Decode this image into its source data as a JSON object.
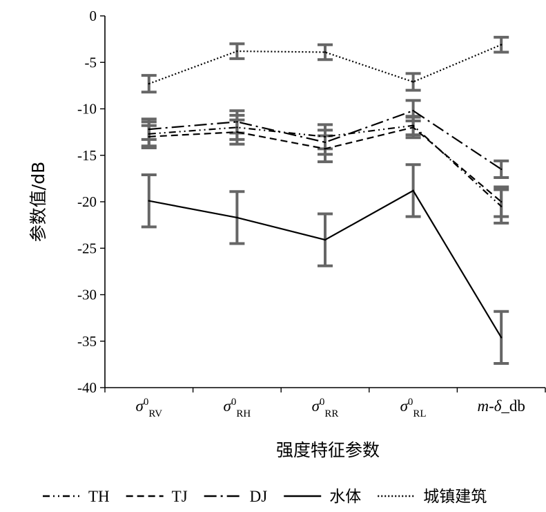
{
  "chart_data": {
    "type": "line",
    "xlabel": "强度特征参数",
    "ylabel": "参数值/dB",
    "ylim": [
      -40,
      0
    ],
    "yticks": [
      0,
      -5,
      -10,
      -15,
      -20,
      -25,
      -30,
      -35,
      -40
    ],
    "categories": [
      {
        "symbol": "σ",
        "sup": "0",
        "sub": "RV"
      },
      {
        "symbol": "σ",
        "sup": "0",
        "sub": "RH"
      },
      {
        "symbol": "σ",
        "sup": "0",
        "sub": "RR"
      },
      {
        "symbol": "σ",
        "sup": "0",
        "sub": "RL"
      },
      {
        "symbol": "m-δ",
        "sup": "",
        "sub": "",
        "suffix": "_db"
      }
    ],
    "grid": false,
    "legend_position": "bottom",
    "series": [
      {
        "name": "TH",
        "dash": "dash-dot-dot",
        "values": [
          -12.7,
          -12.0,
          -13.0,
          -11.8,
          -20.5
        ],
        "errors": [
          1.3,
          1.3,
          1.3,
          1.0,
          1.8
        ]
      },
      {
        "name": "TJ",
        "dash": "dash",
        "values": [
          -13.0,
          -12.5,
          -14.3,
          -12.0,
          -20.0
        ],
        "errors": [
          1.2,
          1.3,
          1.4,
          1.1,
          1.6
        ]
      },
      {
        "name": "DJ",
        "dash": "long-dash-dot",
        "values": [
          -12.2,
          -11.4,
          -13.6,
          -10.2,
          -16.5
        ],
        "errors": [
          1.1,
          1.2,
          1.3,
          1.1,
          0.9
        ]
      },
      {
        "name": "水体",
        "dash": "solid",
        "values": [
          -19.9,
          -21.7,
          -24.1,
          -18.8,
          -34.6
        ],
        "errors": [
          2.8,
          2.8,
          2.8,
          2.8,
          2.8
        ]
      },
      {
        "name": "城镇建筑",
        "dash": "dot",
        "values": [
          -7.3,
          -3.8,
          -3.9,
          -7.1,
          -3.1
        ],
        "errors": [
          0.9,
          0.8,
          0.8,
          0.9,
          0.8
        ]
      }
    ]
  }
}
